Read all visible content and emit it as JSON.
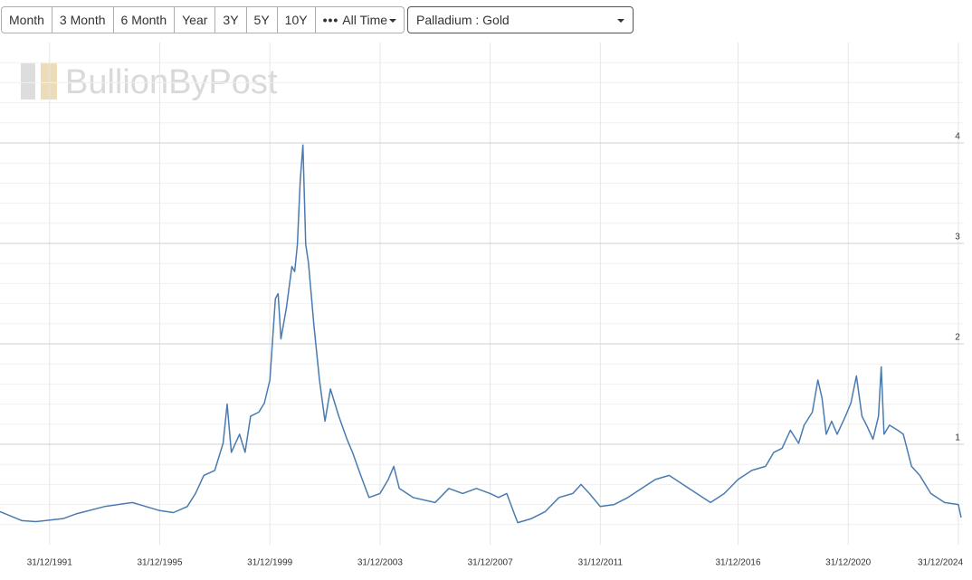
{
  "toolbar": {
    "buttons": [
      "Month",
      "3 Month",
      "6 Month",
      "Year",
      "3Y",
      "5Y",
      "10Y"
    ],
    "all_time": "All Time"
  },
  "ratio_select": "Palladium : Gold",
  "chart_data": {
    "type": "line",
    "watermark": "BullionByPost",
    "x": [
      1990.2,
      1991.0,
      1991.5,
      1992.5,
      1993.0,
      1994.0,
      1995.0,
      1995.5,
      1996.0,
      1996.5,
      1997.0,
      1997.3,
      1997.6,
      1998.0,
      1998.3,
      1998.45,
      1998.6,
      1998.9,
      1999.1,
      1999.3,
      1999.6,
      1999.8,
      2000.0,
      2000.2,
      2000.3,
      2000.4,
      2000.6,
      2000.8,
      2000.9,
      2001.0,
      2001.1,
      2001.2,
      2001.3,
      2001.4,
      2001.6,
      2001.8,
      2002.0,
      2002.2,
      2002.5,
      2002.8,
      2003.0,
      2003.3,
      2003.6,
      2004.0,
      2004.3,
      2004.5,
      2004.7,
      2005.2,
      2006.0,
      2006.5,
      2007.0,
      2007.5,
      2008.0,
      2008.3,
      2008.6,
      2008.9,
      2009.0,
      2009.5,
      2010.0,
      2010.5,
      2011.0,
      2011.3,
      2011.6,
      2012.0,
      2012.5,
      2013.0,
      2013.5,
      2014.0,
      2014.5,
      2015.0,
      2015.5,
      2016.0,
      2016.5,
      2017.0,
      2017.5,
      2018.0,
      2018.3,
      2018.6,
      2018.9,
      2019.2,
      2019.4,
      2019.7,
      2019.9,
      2020.05,
      2020.2,
      2020.4,
      2020.6,
      2020.9,
      2021.1,
      2021.3,
      2021.5,
      2021.7,
      2021.9,
      2022.1,
      2022.2,
      2022.3,
      2022.5,
      2022.8,
      2023.0,
      2023.3,
      2023.6,
      2024.0,
      2024.5,
      2025.0,
      2025.1
    ],
    "series": [
      {
        "name": "Palladium : Gold",
        "color": "#4a7bb0",
        "values": [
          0.33,
          0.24,
          0.23,
          0.26,
          0.31,
          0.38,
          0.42,
          0.38,
          0.34,
          0.32,
          0.38,
          0.51,
          0.69,
          0.74,
          1.01,
          1.4,
          0.92,
          1.1,
          0.92,
          1.28,
          1.32,
          1.41,
          1.64,
          2.45,
          2.5,
          2.05,
          2.36,
          2.77,
          2.72,
          2.99,
          3.62,
          3.98,
          2.99,
          2.81,
          2.18,
          1.64,
          1.23,
          1.55,
          1.28,
          1.05,
          0.92,
          0.69,
          0.47,
          0.51,
          0.65,
          0.78,
          0.56,
          0.47,
          0.42,
          0.56,
          0.51,
          0.56,
          0.51,
          0.47,
          0.51,
          0.29,
          0.22,
          0.26,
          0.33,
          0.47,
          0.51,
          0.6,
          0.51,
          0.38,
          0.4,
          0.47,
          0.56,
          0.65,
          0.69,
          0.6,
          0.51,
          0.42,
          0.51,
          0.65,
          0.74,
          0.78,
          0.92,
          0.96,
          1.14,
          1.01,
          1.19,
          1.32,
          1.64,
          1.46,
          1.1,
          1.23,
          1.1,
          1.28,
          1.41,
          1.68,
          1.28,
          1.17,
          1.05,
          1.28,
          1.77,
          1.1,
          1.19,
          1.14,
          1.1,
          0.78,
          0.69,
          0.51,
          0.42,
          0.4,
          0.27
        ]
      }
    ],
    "xlim": [
      1990.2,
      2025.2
    ],
    "xticks": [
      {
        "value": 1992,
        "label": "31/12/1991"
      },
      {
        "value": 1996,
        "label": "31/12/1995"
      },
      {
        "value": 2000,
        "label": "31/12/1999"
      },
      {
        "value": 2004,
        "label": "31/12/2003"
      },
      {
        "value": 2008,
        "label": "31/12/2007"
      },
      {
        "value": 2012,
        "label": "31/12/2011"
      },
      {
        "value": 2017,
        "label": "31/12/2016"
      },
      {
        "value": 2021,
        "label": "31/12/2020"
      },
      {
        "value": 2025,
        "label": "31/12/2024"
      }
    ],
    "ylim": [
      0,
      5
    ],
    "yticks": [
      1,
      2,
      3,
      4
    ],
    "minor_yticks": [
      0.2,
      0.4,
      0.6,
      0.8,
      1.2,
      1.4,
      1.6,
      1.8,
      2.2,
      2.4,
      2.6,
      2.8,
      3.2,
      3.4,
      3.6,
      3.8,
      4.2,
      4.4,
      4.6,
      4.8
    ],
    "grid": true
  }
}
